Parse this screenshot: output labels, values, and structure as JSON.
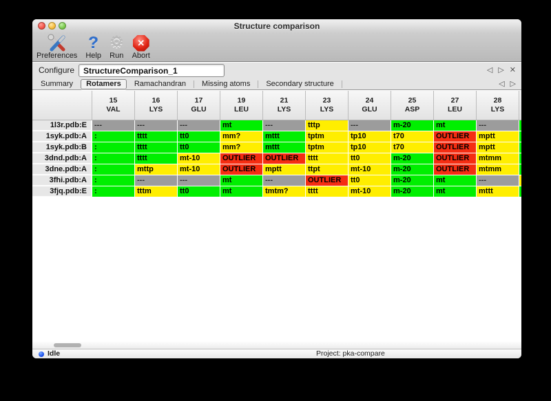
{
  "window": {
    "title": "Structure comparison"
  },
  "toolbar": {
    "buttons": [
      {
        "label": "Preferences",
        "icon": "tools-icon"
      },
      {
        "label": "Help",
        "icon": "question-mark-icon",
        "glyph": "?"
      },
      {
        "label": "Run",
        "icon": "gear-icon",
        "glyph": "⚙"
      },
      {
        "label": "Abort",
        "icon": "abort-stop-icon",
        "glyph": "✕"
      }
    ]
  },
  "nav": {
    "prev_icon": "◁",
    "next_icon": "▷",
    "close_icon": "✕"
  },
  "configure": {
    "label": "Configure",
    "value": "StructureComparison_1"
  },
  "tabs": {
    "items": [
      "Summary",
      "Rotamers",
      "Ramachandran",
      "Missing atoms",
      "Secondary structure"
    ],
    "selected": "Rotamers"
  },
  "colors": {
    "green": "#00ef00",
    "yellow": "#ffee00",
    "red": "#f52d12",
    "gray": "#9c9c9c"
  },
  "table": {
    "columns": [
      {
        "num": "15",
        "res": "VAL"
      },
      {
        "num": "16",
        "res": "LYS"
      },
      {
        "num": "17",
        "res": "GLU"
      },
      {
        "num": "19",
        "res": "LEU"
      },
      {
        "num": "21",
        "res": "LYS"
      },
      {
        "num": "23",
        "res": "LYS"
      },
      {
        "num": "24",
        "res": "GLU"
      },
      {
        "num": "25",
        "res": "ASP"
      },
      {
        "num": "27",
        "res": "LEU"
      },
      {
        "num": "28",
        "res": "LYS"
      }
    ],
    "rows": [
      {
        "label": "1l3r.pdb:E",
        "sliver": "green",
        "cells": [
          {
            "v": "---",
            "c": "gray"
          },
          {
            "v": "---",
            "c": "gray"
          },
          {
            "v": "---",
            "c": "gray"
          },
          {
            "v": "mt",
            "c": "green"
          },
          {
            "v": "---",
            "c": "gray"
          },
          {
            "v": "tttp",
            "c": "yellow"
          },
          {
            "v": "---",
            "c": "gray"
          },
          {
            "v": "m-20",
            "c": "green"
          },
          {
            "v": "mt",
            "c": "green"
          },
          {
            "v": "---",
            "c": "gray"
          }
        ]
      },
      {
        "label": "1syk.pdb:A",
        "sliver": "green",
        "cells": [
          {
            "v": ":",
            "c": "green"
          },
          {
            "v": "tttt",
            "c": "green"
          },
          {
            "v": "tt0",
            "c": "green"
          },
          {
            "v": "mm?",
            "c": "yellow"
          },
          {
            "v": "mttt",
            "c": "green"
          },
          {
            "v": "tptm",
            "c": "yellow"
          },
          {
            "v": "tp10",
            "c": "yellow"
          },
          {
            "v": "t70",
            "c": "yellow"
          },
          {
            "v": "OUTLIER",
            "c": "red"
          },
          {
            "v": "mptt",
            "c": "yellow"
          }
        ]
      },
      {
        "label": "1syk.pdb:B",
        "sliver": "green",
        "cells": [
          {
            "v": ":",
            "c": "green"
          },
          {
            "v": "tttt",
            "c": "green"
          },
          {
            "v": "tt0",
            "c": "green"
          },
          {
            "v": "mm?",
            "c": "yellow"
          },
          {
            "v": "mttt",
            "c": "green"
          },
          {
            "v": "tptm",
            "c": "yellow"
          },
          {
            "v": "tp10",
            "c": "yellow"
          },
          {
            "v": "t70",
            "c": "yellow"
          },
          {
            "v": "OUTLIER",
            "c": "red"
          },
          {
            "v": "mptt",
            "c": "yellow"
          }
        ]
      },
      {
        "label": "3dnd.pdb:A",
        "sliver": "green",
        "cells": [
          {
            "v": ":",
            "c": "green"
          },
          {
            "v": "tttt",
            "c": "green"
          },
          {
            "v": "mt-10",
            "c": "yellow"
          },
          {
            "v": "OUTLIER",
            "c": "red"
          },
          {
            "v": "OUTLIER",
            "c": "red"
          },
          {
            "v": "tttt",
            "c": "yellow"
          },
          {
            "v": "tt0",
            "c": "yellow"
          },
          {
            "v": "m-20",
            "c": "green"
          },
          {
            "v": "OUTLIER",
            "c": "red"
          },
          {
            "v": "mtmm",
            "c": "yellow"
          }
        ]
      },
      {
        "label": "3dne.pdb:A",
        "sliver": "green",
        "cells": [
          {
            "v": ":",
            "c": "green"
          },
          {
            "v": "mttp",
            "c": "yellow"
          },
          {
            "v": "mt-10",
            "c": "yellow"
          },
          {
            "v": "OUTLIER",
            "c": "red"
          },
          {
            "v": "mptt",
            "c": "yellow"
          },
          {
            "v": "ttpt",
            "c": "yellow"
          },
          {
            "v": "mt-10",
            "c": "yellow"
          },
          {
            "v": "m-20",
            "c": "green"
          },
          {
            "v": "OUTLIER",
            "c": "red"
          },
          {
            "v": "mtmm",
            "c": "yellow"
          }
        ]
      },
      {
        "label": "3fhi.pdb:A",
        "sliver": "yellow",
        "cells": [
          {
            "v": ":",
            "c": "green"
          },
          {
            "v": "---",
            "c": "gray"
          },
          {
            "v": "---",
            "c": "gray"
          },
          {
            "v": "mt",
            "c": "green"
          },
          {
            "v": "---",
            "c": "gray"
          },
          {
            "v": "OUTLIER",
            "c": "red"
          },
          {
            "v": "tt0",
            "c": "yellow"
          },
          {
            "v": "m-20",
            "c": "green"
          },
          {
            "v": "mt",
            "c": "green"
          },
          {
            "v": "---",
            "c": "gray"
          }
        ]
      },
      {
        "label": "3fjq.pdb:E",
        "sliver": "green",
        "cells": [
          {
            "v": ":",
            "c": "green"
          },
          {
            "v": "tttm",
            "c": "yellow"
          },
          {
            "v": "tt0",
            "c": "green"
          },
          {
            "v": "mt",
            "c": "green"
          },
          {
            "v": "tmtm?",
            "c": "yellow"
          },
          {
            "v": "tttt",
            "c": "yellow"
          },
          {
            "v": "mt-10",
            "c": "yellow"
          },
          {
            "v": "m-20",
            "c": "green"
          },
          {
            "v": "mt",
            "c": "green"
          },
          {
            "v": "mttt",
            "c": "yellow"
          }
        ]
      }
    ]
  },
  "status": {
    "text": "Idle",
    "project": "Project: pka-compare"
  }
}
